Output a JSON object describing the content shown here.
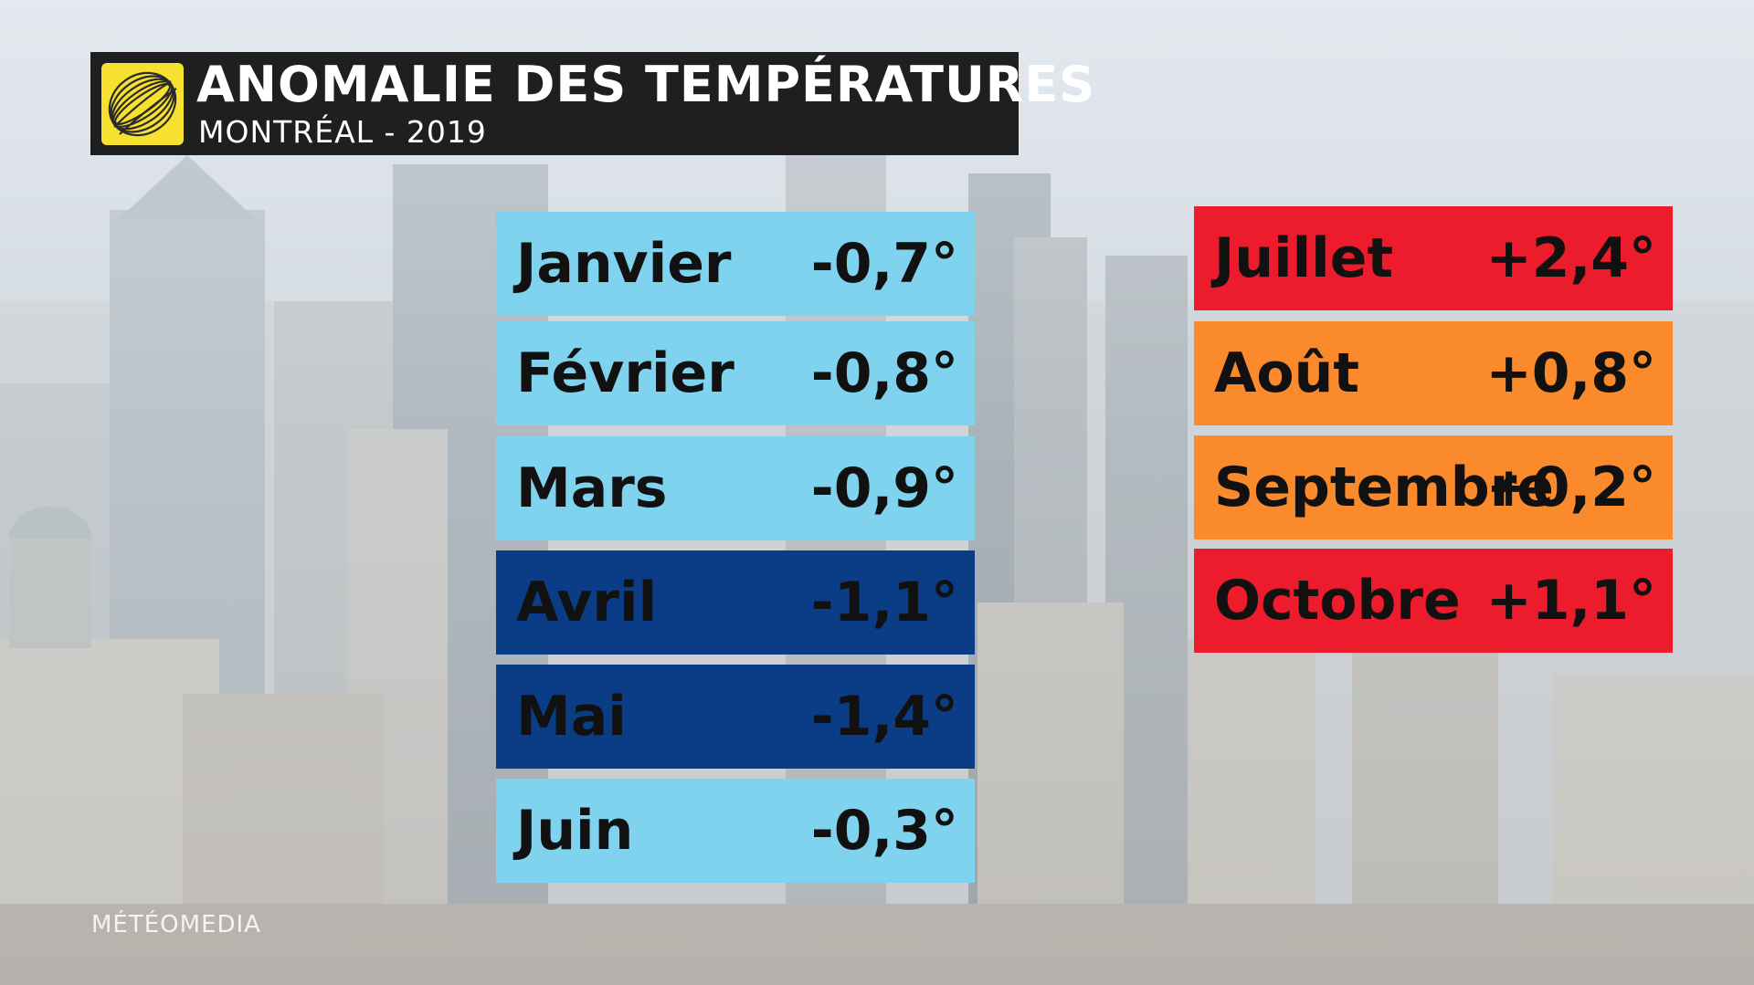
{
  "header": {
    "title": "ANOMALIE DES TEMPÉRATURES",
    "subtitle": "MONTRÉAL - 2019"
  },
  "months_left": [
    {
      "label": "Janvier",
      "value": "-0,7°",
      "bg": "#7fd3ee",
      "fg": "#111111"
    },
    {
      "label": "Février",
      "value": "-0,8°",
      "bg": "#7fd3ee",
      "fg": "#111111"
    },
    {
      "label": "Mars",
      "value": "-0,9°",
      "bg": "#7fd3ee",
      "fg": "#111111"
    },
    {
      "label": "Avril",
      "value": "-1,1°",
      "bg": "#0b3d86",
      "fg": "#111111"
    },
    {
      "label": "Mai",
      "value": "-1,4°",
      "bg": "#0b3d86",
      "fg": "#111111"
    },
    {
      "label": "Juin",
      "value": "-0,3°",
      "bg": "#7fd3ee",
      "fg": "#111111"
    }
  ],
  "months_right": [
    {
      "label": "Juillet",
      "value": "+2,4°",
      "bg": "#ec1c2c",
      "fg": "#111111"
    },
    {
      "label": "Août",
      "value": "+0,8°",
      "bg": "#fb8a2c",
      "fg": "#111111"
    },
    {
      "label": "Septembre",
      "value": "+0,2°",
      "bg": "#fb8a2c",
      "fg": "#111111"
    },
    {
      "label": "Octobre",
      "value": "+1,1°",
      "bg": "#ec1c2c",
      "fg": "#111111"
    }
  ],
  "watermark": "MÉTÉOMEDIA",
  "colors": {
    "title_bg": "#1f1f1f",
    "logo_bg": "#f6e030"
  },
  "logo_icon": "globe-swirl-icon"
}
